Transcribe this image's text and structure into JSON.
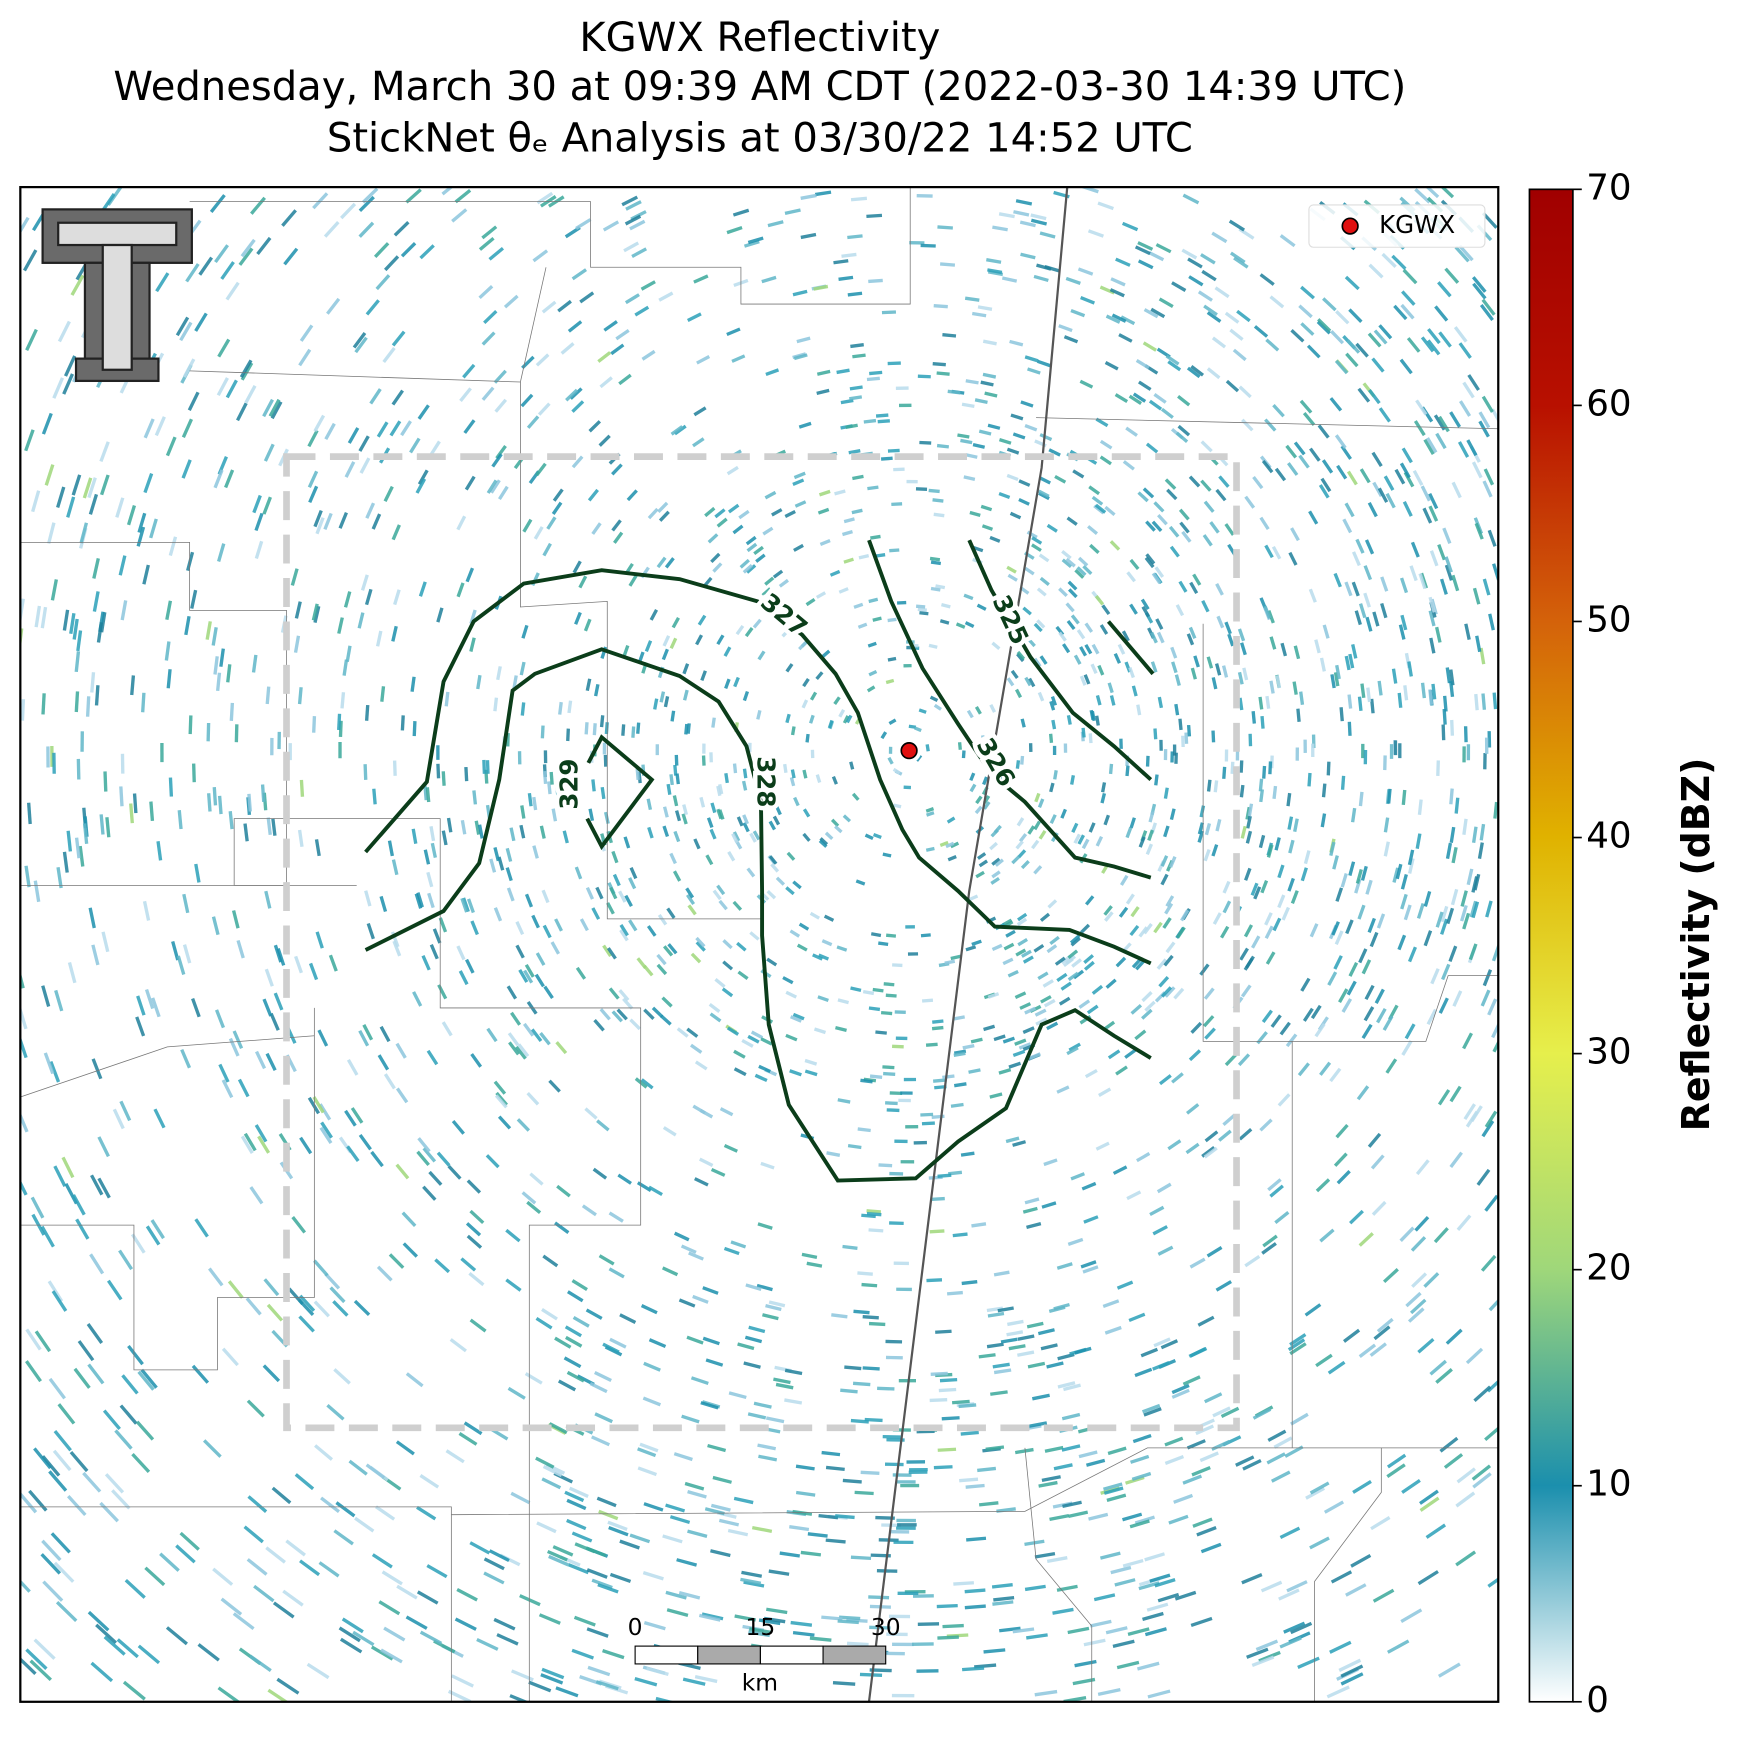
{
  "title": [
    "KGWX Reflectivity",
    "Wednesday, March 30 at 09:39 AM CDT (2022-03-30 14:39 UTC)",
    "StickNet θₑ Analysis at 03/30/22 14:52 UTC"
  ],
  "legend": {
    "label": "KGWX",
    "color": "#e01010"
  },
  "colorbar": {
    "label": "Reflectivity (dBZ)",
    "lim": [
      0,
      70
    ],
    "ticks": [
      0,
      10,
      20,
      30,
      40,
      50,
      60,
      70
    ],
    "colors": [
      "#ffffff",
      "#1b8fad",
      "#9fd77a",
      "#e6ef4c",
      "#e0b200",
      "#d4620a",
      "#b81000",
      "#a00000"
    ]
  },
  "contours": {
    "levels": [
      325,
      326,
      327,
      328,
      329
    ],
    "color": "#0b3d1a"
  },
  "scale_bar": {
    "ticks": [
      0,
      15,
      30
    ],
    "unit": "km"
  }
}
